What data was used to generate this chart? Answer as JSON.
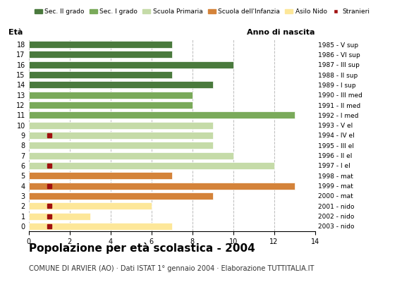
{
  "ages": [
    18,
    17,
    16,
    15,
    14,
    13,
    12,
    11,
    10,
    9,
    8,
    7,
    6,
    5,
    4,
    3,
    2,
    1,
    0
  ],
  "years": [
    "1985 - V sup",
    "1986 - VI sup",
    "1987 - III sup",
    "1988 - II sup",
    "1989 - I sup",
    "1990 - III med",
    "1991 - II med",
    "1992 - I med",
    "1993 - V el",
    "1994 - IV el",
    "1995 - III el",
    "1996 - II el",
    "1997 - I el",
    "1998 - mat",
    "1999 - mat",
    "2000 - mat",
    "2001 - nido",
    "2002 - nido",
    "2003 - nido"
  ],
  "values": [
    7,
    7,
    10,
    7,
    9,
    8,
    8,
    13,
    9,
    9,
    9,
    10,
    12,
    7,
    13,
    9,
    6,
    3,
    7
  ],
  "stranieri": [
    0,
    0,
    0,
    0,
    0,
    0,
    0,
    0,
    0,
    1,
    0,
    0,
    1,
    0,
    1,
    0,
    1,
    1,
    1
  ],
  "categories": {
    "sec2": [
      18,
      17,
      16,
      15,
      14
    ],
    "sec1": [
      13,
      12,
      11
    ],
    "primaria": [
      10,
      9,
      8,
      7,
      6
    ],
    "infanzia": [
      5,
      4,
      3
    ],
    "nido": [
      2,
      1,
      0
    ]
  },
  "colors": {
    "sec2": "#4a7a3d",
    "sec1": "#7aaa5a",
    "primaria": "#c5dba8",
    "infanzia": "#d4833a",
    "nido": "#fde799",
    "stranieri": "#a01010"
  },
  "legend_labels": [
    "Sec. II grado",
    "Sec. I grado",
    "Scuola Primaria",
    "Scuola dell'Infanzia",
    "Asilo Nido",
    "Stranieri"
  ],
  "title": "Popolazione per età scolastica - 2004",
  "subtitle": "COMUNE DI ARVIER (AO) · Dati ISTAT 1° gennaio 2004 · Elaborazione TUTTITALIA.IT",
  "xlabel_left": "Età",
  "xlabel_right": "Anno di nascita",
  "xlim": [
    0,
    14
  ],
  "xticks": [
    0,
    2,
    4,
    6,
    8,
    10,
    12,
    14
  ],
  "bar_height": 0.7,
  "background_color": "#ffffff",
  "grid_color": "#bbbbbb"
}
